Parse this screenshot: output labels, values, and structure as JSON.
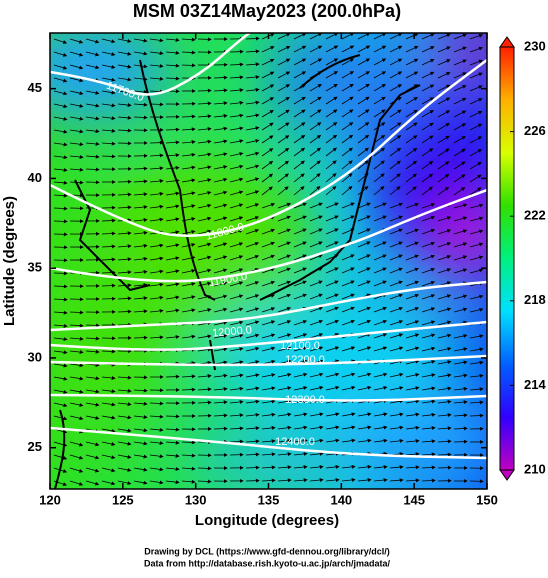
{
  "chart_data": {
    "type": "map",
    "title": "MSM 03Z14May2023 (200.0hPa)",
    "xlabel": "Longitude (degrees)",
    "ylabel": "Latitude  (degrees)",
    "xlim": [
      120,
      150
    ],
    "xticks": [
      120,
      125,
      130,
      135,
      140,
      145,
      150
    ],
    "ylim": [
      22.7,
      48.1
    ],
    "yticks": [
      25,
      30,
      35,
      40,
      45
    ],
    "colorbar": {
      "lim": [
        210,
        230
      ],
      "ticks": [
        210,
        214,
        218,
        222,
        226,
        230
      ],
      "colors": [
        "#c000c0",
        "#3000ff",
        "#0060ff",
        "#00e0ff",
        "#00f080",
        "#30e000",
        "#d8ff00",
        "#ffb000",
        "#ff2000"
      ]
    },
    "contours": [
      {
        "value": 11700,
        "label": "11700.0"
      },
      {
        "value": 11800,
        "label": "11800.0"
      },
      {
        "value": 11900,
        "label": "11900.0"
      },
      {
        "value": 12000,
        "label": "12000.0"
      },
      {
        "value": 12100,
        "label": "12100.0"
      },
      {
        "value": 12200,
        "label": "12200.0"
      },
      {
        "value": 12300,
        "label": "12300.0"
      },
      {
        "value": 12400,
        "label": "12400.0"
      }
    ],
    "footer": [
      "Drawing by DCL (https://www.gfd-dennou.org/library/dcl/)",
      "Data from http://database.rish.kyoto-u.ac.jp/arch/jmadata/"
    ]
  }
}
